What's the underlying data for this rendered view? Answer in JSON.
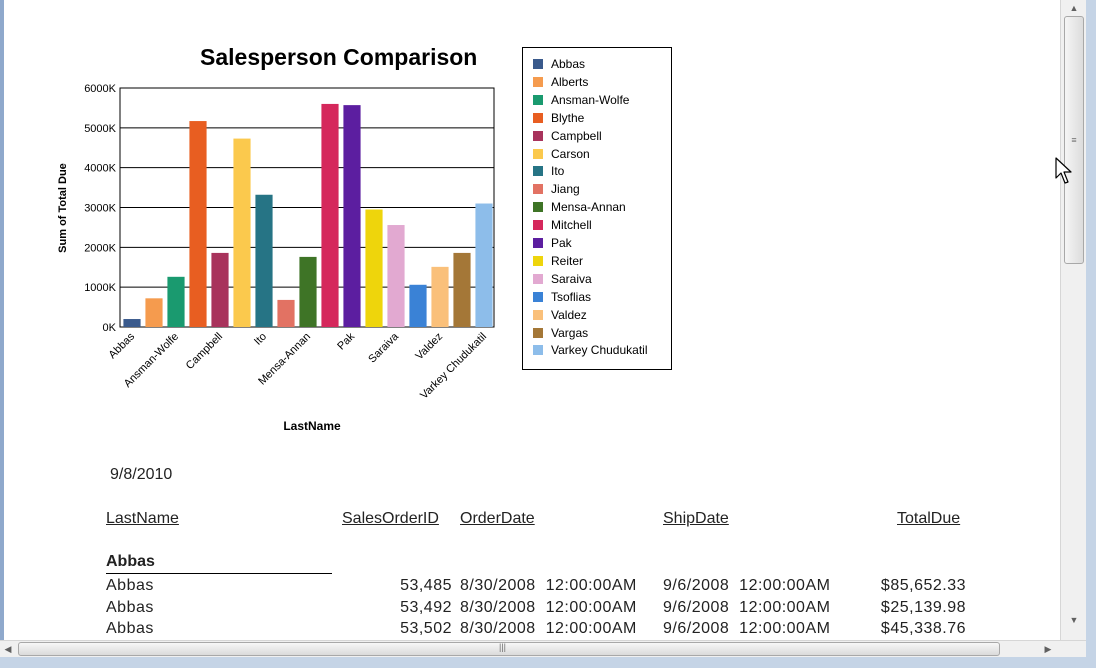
{
  "chart_data": {
    "type": "bar",
    "title": "Salesperson Comparison",
    "xlabel": "LastName",
    "ylabel": "Sum of Total Due",
    "ylim": [
      0,
      6000
    ],
    "yticks": [
      "0K",
      "1000K",
      "2000K",
      "3000K",
      "4000K",
      "5000K",
      "6000K"
    ],
    "grid": true,
    "legend_position": "right",
    "x_tick_labels": [
      "Abbas",
      "Ansman-Wolfe",
      "Campbell",
      "Ito",
      "Mensa-Annan",
      "Pak",
      "Saraiva",
      "Valdez",
      "Varkey Chudukatil"
    ],
    "series": [
      {
        "name": "Abbas",
        "value": 200,
        "color": "#3a5a8c"
      },
      {
        "name": "Alberts",
        "value": 720,
        "color": "#f59b4e"
      },
      {
        "name": "Ansman-Wolfe",
        "value": 1260,
        "color": "#1a9a6f"
      },
      {
        "name": "Blythe",
        "value": 5170,
        "color": "#e85e21"
      },
      {
        "name": "Campbell",
        "value": 1860,
        "color": "#a8335c"
      },
      {
        "name": "Carson",
        "value": 4730,
        "color": "#fbc94d"
      },
      {
        "name": "Ito",
        "value": 3320,
        "color": "#267485"
      },
      {
        "name": "Jiang",
        "value": 680,
        "color": "#e27263"
      },
      {
        "name": "Mensa-Annan",
        "value": 1760,
        "color": "#3e7426"
      },
      {
        "name": "Mitchell",
        "value": 5600,
        "color": "#d5285c"
      },
      {
        "name": "Pak",
        "value": 5570,
        "color": "#5c1ea0"
      },
      {
        "name": "Reiter",
        "value": 2950,
        "color": "#eed50c"
      },
      {
        "name": "Saraiva",
        "value": 2560,
        "color": "#e2a9d1"
      },
      {
        "name": "Tsoflias",
        "value": 1060,
        "color": "#3a82d6"
      },
      {
        "name": "Valdez",
        "value": 1510,
        "color": "#fac07a"
      },
      {
        "name": "Vargas",
        "value": 1860,
        "color": "#a47737"
      },
      {
        "name": "Varkey Chudukatil",
        "value": 3100,
        "color": "#8dbdea"
      }
    ]
  },
  "report": {
    "date": "9/8/2010",
    "headers": {
      "last_name": "LastName",
      "sales_order_id": "SalesOrderID",
      "order_date": "OrderDate",
      "ship_date": "ShipDate",
      "total_due": "TotalDue"
    },
    "group_name": "Abbas",
    "rows": [
      {
        "last_name": "Abbas",
        "sales_order_id": "53,485",
        "order_date": "8/30/2008  12:00:00AM",
        "ship_date": "9/6/2008  12:00:00AM",
        "total_due": "$85,652.33"
      },
      {
        "last_name": "Abbas",
        "sales_order_id": "53,492",
        "order_date": "8/30/2008  12:00:00AM",
        "ship_date": "9/6/2008  12:00:00AM",
        "total_due": "$25,139.98"
      },
      {
        "last_name": "Abbas",
        "sales_order_id": "53,502",
        "order_date": "8/30/2008  12:00:00AM",
        "ship_date": "9/6/2008  12:00:00AM",
        "total_due": "$45,338.76"
      }
    ]
  },
  "icons": {
    "scroll_up": "scroll-up-arrow-icon",
    "scroll_down": "scroll-down-arrow-icon",
    "scroll_left": "scroll-left-arrow-icon",
    "scroll_right": "scroll-right-arrow-icon",
    "cursor": "mouse-pointer-icon"
  }
}
